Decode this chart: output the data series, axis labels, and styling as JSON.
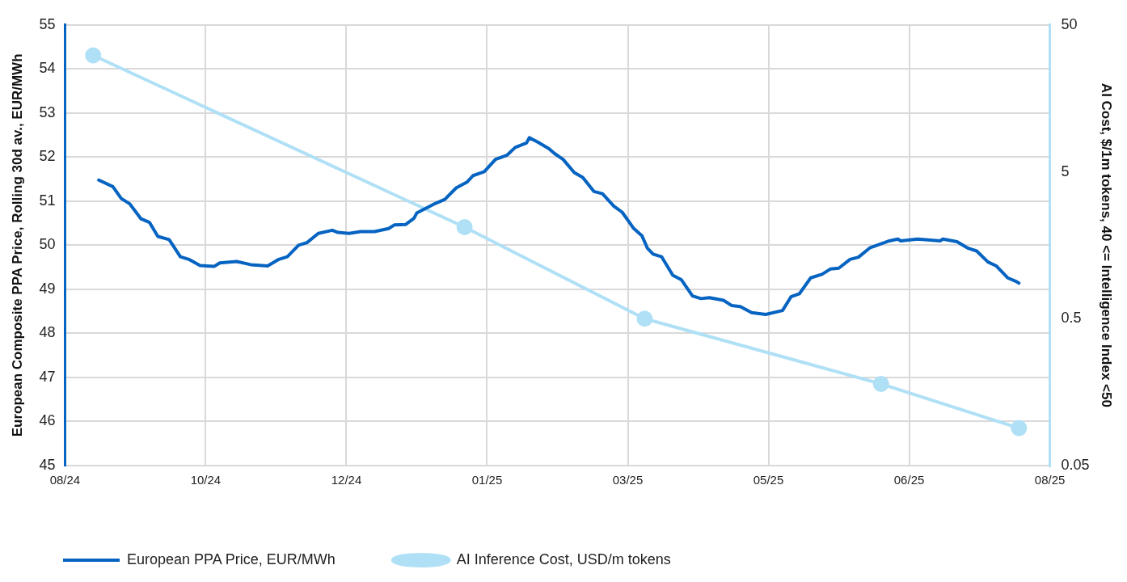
{
  "chart_data": {
    "type": "line",
    "ylabel": "European Composite PPA Price, Rolling 30d av., EUR/MWh",
    "y2label": "AI Cost, $/1m tokens, 40 <= Intelligence Index <50",
    "xlim": [
      "2024-08-25",
      "2025-08-10"
    ],
    "xticks": [
      {
        "value": "2024-08-25",
        "label": "08/24"
      },
      {
        "value": "2024-10-14",
        "label": "10/24"
      },
      {
        "value": "2024-12-03",
        "label": "12/24"
      },
      {
        "value": "2025-01-22",
        "label": "01/25"
      },
      {
        "value": "2025-03-13",
        "label": "03/25"
      },
      {
        "value": "2025-05-02",
        "label": "05/25"
      },
      {
        "value": "2025-06-21",
        "label": "06/25"
      },
      {
        "value": "2025-08-10",
        "label": "08/25"
      }
    ],
    "ylim": [
      45,
      55
    ],
    "yticks": [
      45,
      46,
      47,
      48,
      49,
      50,
      51,
      52,
      53,
      54,
      55
    ],
    "y2lim": [
      0.05,
      50
    ],
    "y2ticks": [
      0.05,
      0.5,
      5,
      50
    ],
    "log": "y2",
    "grid": true,
    "legend": "bottom",
    "series": [
      {
        "name": "European PPA Price, EUR/MWh",
        "color": "#0563c1",
        "marker": "none",
        "x": [
          "2024-09-06",
          "2024-09-11",
          "2024-09-14",
          "2024-09-17",
          "2024-09-21",
          "2024-09-24",
          "2024-09-27",
          "2024-10-01",
          "2024-10-05",
          "2024-10-08",
          "2024-10-12",
          "2024-10-17",
          "2024-10-19",
          "2024-10-25",
          "2024-10-30",
          "2024-11-05",
          "2024-11-09",
          "2024-11-12",
          "2024-11-16",
          "2024-11-19",
          "2024-11-23",
          "2024-11-28",
          "2024-11-30",
          "2024-12-04",
          "2024-12-08",
          "2024-12-13",
          "2024-12-18",
          "2024-12-20",
          "2024-12-24",
          "2024-12-27",
          "2024-12-28",
          "2025-01-03",
          "2025-01-07",
          "2025-01-11",
          "2025-01-15",
          "2025-01-17",
          "2025-01-21",
          "2025-01-25",
          "2025-01-29",
          "2025-02-01",
          "2025-02-05",
          "2025-02-06",
          "2025-02-09",
          "2025-02-13",
          "2025-02-15",
          "2025-02-18",
          "2025-02-22",
          "2025-02-25",
          "2025-03-01",
          "2025-03-04",
          "2025-03-08",
          "2025-03-11",
          "2025-03-15",
          "2025-03-18",
          "2025-03-20",
          "2025-03-22",
          "2025-03-25",
          "2025-03-29",
          "2025-04-01",
          "2025-04-05",
          "2025-04-08",
          "2025-04-11",
          "2025-04-16",
          "2025-04-19",
          "2025-04-22",
          "2025-04-26",
          "2025-05-01",
          "2025-05-07",
          "2025-05-10",
          "2025-05-13",
          "2025-05-17",
          "2025-05-21",
          "2025-05-24",
          "2025-05-27",
          "2025-05-31",
          "2025-06-03",
          "2025-06-07",
          "2025-06-14",
          "2025-06-17",
          "2025-06-18",
          "2025-06-24",
          "2025-07-02",
          "2025-07-03",
          "2025-07-08",
          "2025-07-12",
          "2025-07-15",
          "2025-07-19",
          "2025-07-22",
          "2025-07-26",
          "2025-07-29",
          "2025-07-30"
        ],
        "values": [
          51.48,
          51.33,
          51.06,
          50.94,
          50.6,
          50.52,
          50.2,
          50.13,
          49.74,
          49.68,
          49.54,
          49.52,
          49.6,
          49.63,
          49.56,
          49.53,
          49.68,
          49.74,
          50.0,
          50.06,
          50.27,
          50.34,
          50.29,
          50.27,
          50.31,
          50.31,
          50.38,
          50.46,
          50.47,
          50.61,
          50.73,
          50.93,
          51.04,
          51.3,
          51.44,
          51.58,
          51.67,
          51.95,
          52.04,
          52.22,
          52.32,
          52.44,
          52.34,
          52.19,
          52.08,
          51.95,
          51.65,
          51.54,
          51.22,
          51.17,
          50.89,
          50.75,
          50.39,
          50.22,
          49.93,
          49.8,
          49.74,
          49.32,
          49.22,
          48.85,
          48.79,
          48.81,
          48.75,
          48.63,
          48.61,
          48.47,
          48.43,
          48.52,
          48.83,
          48.9,
          49.26,
          49.34,
          49.46,
          49.48,
          49.68,
          49.73,
          49.94,
          50.1,
          50.14,
          50.1,
          50.14,
          50.1,
          50.14,
          50.08,
          49.93,
          49.87,
          49.62,
          49.53,
          49.26,
          49.18,
          49.14
        ]
      },
      {
        "name": "AI Inference Cost, USD/m tokens",
        "color": "#b0e0f6",
        "marker": "circle",
        "axis": "y2",
        "x": [
          "2024-09-04",
          "2025-01-14",
          "2025-03-19",
          "2025-06-11",
          "2025-07-30"
        ],
        "values": [
          31,
          2.1,
          0.5,
          0.18,
          0.09
        ]
      }
    ]
  }
}
